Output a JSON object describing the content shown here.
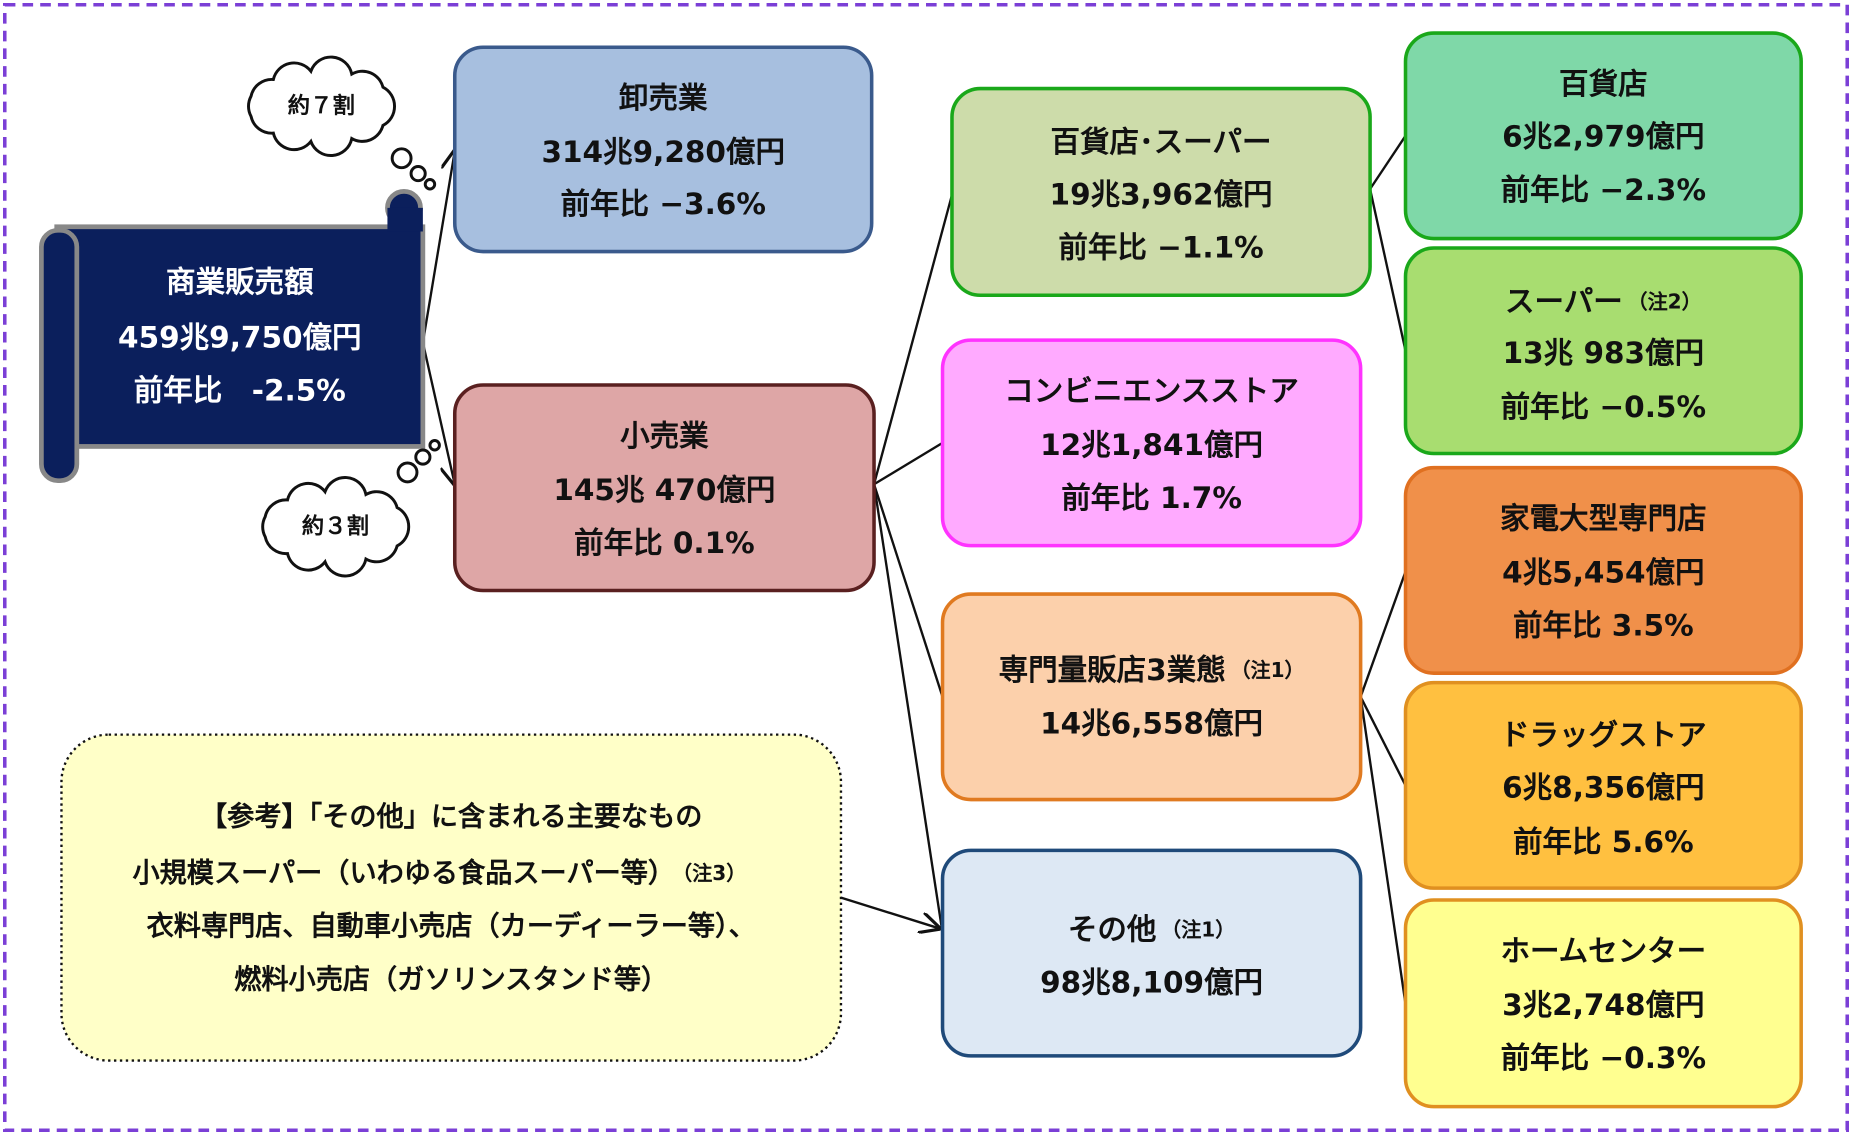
{
  "root": {
    "label": "商業販売額",
    "amount": "459兆9,750億円",
    "change": "前年比　-2.5%"
  },
  "bubbles": [
    {
      "label": "約７割"
    },
    {
      "label": "約３割"
    }
  ],
  "nodes": [
    {
      "label": "卸売業",
      "amount": "314兆9,280億円",
      "change": "前年比 −3.6%"
    },
    {
      "label": "小売業",
      "amount": "145兆 470億円",
      "change": "前年比 0.1%"
    },
    {
      "label": "百貨店･スーパー",
      "amount": "19兆3,962億円",
      "change": "前年比 −1.1%"
    },
    {
      "label": "コンビニエンスストア",
      "amount": "12兆1,841億円",
      "change": "前年比 1.7%"
    },
    {
      "label": "専門量販店3業態",
      "note": "（注1）",
      "amount": "14兆6,558億円"
    },
    {
      "label": "その他",
      "note": "（注1）",
      "amount": "98兆8,109億円"
    },
    {
      "label": "百貨店",
      "amount": "6兆2,979億円",
      "change": "前年比 −2.3%"
    },
    {
      "label": "スーパー",
      "note": "（注2）",
      "amount": "13兆 983億円",
      "change": "前年比 −0.5%"
    },
    {
      "label": "家電大型専門店",
      "amount": "4兆5,454億円",
      "change": "前年比 3.5%"
    },
    {
      "label": "ドラッグストア",
      "amount": "6兆8,356億円",
      "change": "前年比 5.6%"
    },
    {
      "label": "ホームセンター",
      "amount": "3兆2,748億円",
      "change": "前年比 −0.3%"
    }
  ],
  "reference": {
    "lines": [
      "【参考】「その他」に含まれる主要なもの",
      "小規模スーパー（いわゆる食品スーパー等）",
      "衣料専門店、自動車小売店（カーディーラー等）、",
      "燃料小売店（ガソリンスタンド等）"
    ],
    "note": "（注3）"
  }
}
